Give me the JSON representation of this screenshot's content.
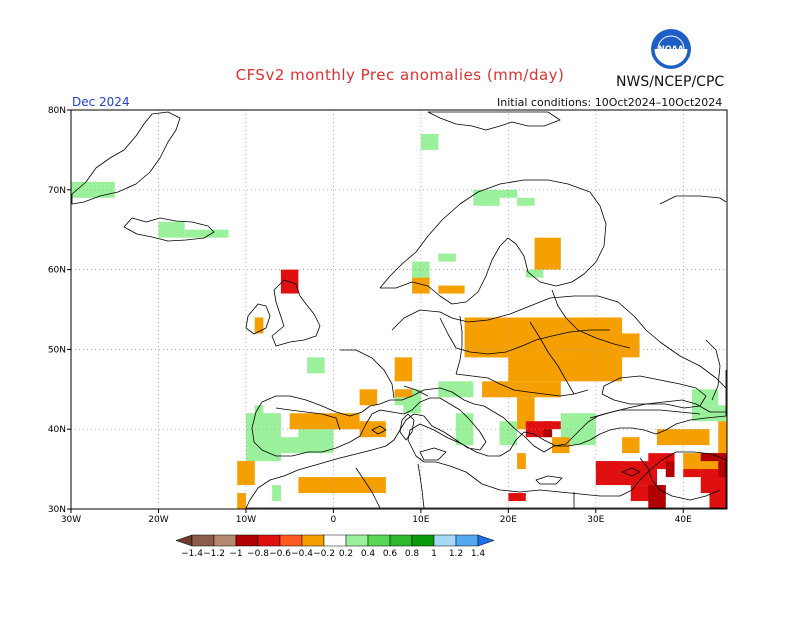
{
  "header": {
    "title": "CFSv2 monthly Prec anomalies (mm/day)",
    "agency": "NWS/NCEP/CPC",
    "month": "Dec 2024",
    "initial_conditions": "Initial conditions: 10Oct2024–10Oct2024",
    "logo_icon": "noaa-logo-icon",
    "logo_text": "NOAA"
  },
  "map": {
    "lon_ticks": [
      "30W",
      "20W",
      "10W",
      "0",
      "10E",
      "20E",
      "30E",
      "40E"
    ],
    "lat_ticks": [
      "80N",
      "70N",
      "60N",
      "50N",
      "40N",
      "30N"
    ],
    "lon_range": [
      -30,
      45
    ],
    "lat_range": [
      30,
      80
    ],
    "grid": true,
    "colors": {
      "land_outline": "#000000",
      "grid": "#999999",
      "sea": "#ffffff"
    }
  },
  "colorbar": {
    "labels": [
      "−1.4",
      "−1.2",
      "−1",
      "−0.8",
      "−0.6",
      "−0.4",
      "−0.2",
      "0.2",
      "0.4",
      "0.6",
      "0.8",
      "1",
      "1.2",
      "1.4"
    ],
    "colors": [
      "#6e3b2a",
      "#8c5b4a",
      "#b5886f",
      "#b00000",
      "#e01010",
      "#ff5a1f",
      "#f5a000",
      "#ffffff",
      "#9bf09b",
      "#56d856",
      "#2db82d",
      "#0a9a0a",
      "#a6d8f7",
      "#53a8f0",
      "#1e6ee6"
    ]
  },
  "anomaly_patches": [
    {
      "value": 0.3,
      "cells": [
        [
          -30,
          69,
          -25,
          71
        ],
        [
          -20,
          64,
          -17,
          66
        ],
        [
          -17,
          64,
          -12,
          65
        ],
        [
          9,
          59,
          11,
          61
        ],
        [
          12,
          61,
          14,
          62
        ],
        [
          16,
          68,
          19,
          70
        ],
        [
          19,
          69,
          21,
          70
        ],
        [
          21,
          68,
          23,
          69
        ],
        [
          22,
          59,
          24,
          60
        ],
        [
          10,
          75,
          12,
          77
        ],
        [
          -3,
          47,
          -1,
          49
        ],
        [
          7,
          43,
          9,
          44
        ],
        [
          -10,
          36,
          -6,
          42
        ],
        [
          -6,
          37,
          -4,
          39
        ],
        [
          -4,
          37,
          0,
          40
        ],
        [
          0,
          40,
          2,
          42
        ],
        [
          8,
          42,
          10,
          45
        ],
        [
          12,
          44,
          16,
          46
        ],
        [
          14,
          38,
          16,
          42
        ],
        [
          19,
          38,
          21,
          41
        ],
        [
          26,
          38,
          30,
          42
        ],
        [
          41,
          41,
          45,
          43
        ],
        [
          -7,
          31,
          -6,
          33
        ],
        [
          -9,
          41,
          -8,
          43
        ],
        [
          41,
          43,
          44,
          45
        ]
      ]
    },
    {
      "value": -0.3,
      "cells": [
        [
          9,
          57,
          11,
          59
        ],
        [
          12,
          57,
          15,
          58
        ],
        [
          7,
          46,
          9,
          49
        ],
        [
          3,
          43,
          5,
          45
        ],
        [
          7,
          44,
          9,
          45
        ],
        [
          15,
          49,
          33,
          54
        ],
        [
          18,
          49,
          35,
          52
        ],
        [
          20,
          46,
          33,
          49
        ],
        [
          17,
          44,
          26,
          46
        ],
        [
          21,
          40,
          23,
          44
        ],
        [
          23,
          60,
          26,
          64
        ],
        [
          28,
          47,
          32,
          49
        ],
        [
          25,
          37,
          27,
          39
        ],
        [
          37,
          38,
          43,
          40
        ],
        [
          -5,
          40,
          3,
          42
        ],
        [
          -4,
          32,
          6,
          34
        ],
        [
          -11,
          33,
          -9,
          36
        ],
        [
          -10,
          33,
          -9,
          36
        ],
        [
          -11,
          30,
          -10,
          32
        ],
        [
          33,
          37,
          35,
          39
        ],
        [
          40,
          34,
          45,
          37
        ],
        [
          36,
          31,
          38,
          33
        ],
        [
          3,
          39,
          6,
          41
        ],
        [
          44,
          37,
          45,
          41
        ],
        [
          21,
          35,
          22,
          37
        ],
        [
          -9,
          52,
          -8,
          54
        ]
      ]
    },
    {
      "value": -0.7,
      "cells": [
        [
          -6,
          57,
          -4,
          60
        ],
        [
          30,
          33,
          37,
          36
        ],
        [
          34,
          31,
          37,
          33
        ],
        [
          36,
          35,
          39,
          37
        ],
        [
          22,
          39,
          25,
          41
        ],
        [
          24,
          40,
          26,
          41
        ],
        [
          20,
          31,
          22,
          32
        ],
        [
          30,
          35,
          33,
          36
        ],
        [
          42,
          32,
          45,
          35
        ],
        [
          40,
          34,
          42,
          35
        ],
        [
          43,
          30,
          45,
          33
        ]
      ]
    },
    {
      "value": -0.9,
      "cells": [
        [
          36,
          30,
          38,
          33
        ],
        [
          38,
          34,
          39,
          36
        ],
        [
          44,
          34,
          45,
          36
        ],
        [
          42,
          36,
          45,
          37
        ],
        [
          24,
          39,
          25,
          40
        ]
      ]
    }
  ]
}
